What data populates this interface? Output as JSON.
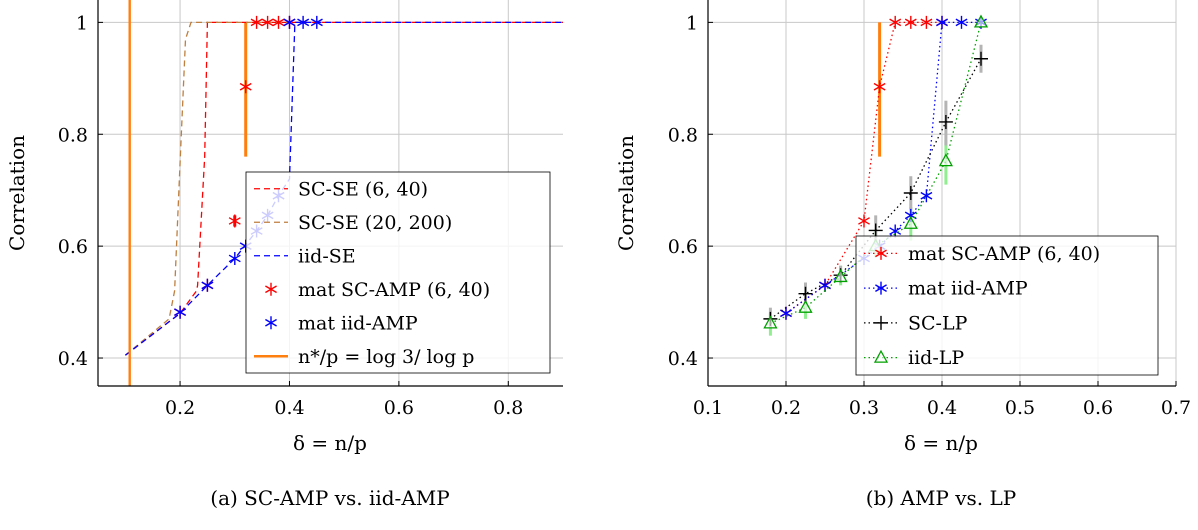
{
  "chart_data": [
    {
      "type": "line",
      "caption": "(a) SC-AMP vs. iid-AMP",
      "xlabel": "δ = n/p",
      "ylabel": "Correlation",
      "xlim": [
        0.05,
        0.9
      ],
      "ylim": [
        0.35,
        1.04
      ],
      "xticks": [
        0.2,
        0.4,
        0.6,
        0.8
      ],
      "xtick_labels": [
        "0.2",
        "0.4",
        "0.6",
        "0.8"
      ],
      "yticks": [
        0.4,
        0.6,
        0.8,
        1.0
      ],
      "ytick_labels": [
        "0.4",
        "0.6",
        "0.8",
        "1"
      ],
      "grid": true,
      "legend_position": "bottom-right",
      "series": [
        {
          "name": "SC-SE (6, 40)",
          "style": "dashed",
          "color": "#ff0000",
          "x": [
            0.1,
            0.2,
            0.23,
            0.232,
            0.245,
            0.25,
            0.9
          ],
          "y": [
            0.405,
            0.48,
            0.52,
            0.53,
            0.76,
            1.0,
            1.0
          ]
        },
        {
          "name": "SC-SE (20, 200)",
          "style": "dashed",
          "color": "#bf7f3f",
          "x": [
            0.1,
            0.18,
            0.19,
            0.2,
            0.21,
            0.22,
            0.9
          ],
          "y": [
            0.405,
            0.47,
            0.52,
            0.75,
            0.97,
            1.0,
            1.0
          ]
        },
        {
          "name": "iid-SE",
          "style": "dashed",
          "color": "#0000ff",
          "x": [
            0.1,
            0.2,
            0.25,
            0.3,
            0.34,
            0.36,
            0.38,
            0.4,
            0.41,
            0.9
          ],
          "y": [
            0.405,
            0.48,
            0.53,
            0.578,
            0.627,
            0.655,
            0.69,
            0.72,
            1.0,
            1.0
          ]
        },
        {
          "name": "mat SC-AMP (6, 40)",
          "style": "markers",
          "marker": "asterisk",
          "color": "#ff0000",
          "x": [
            0.2,
            0.25,
            0.3,
            0.32,
            0.34,
            0.36,
            0.38,
            0.4
          ],
          "y": [
            0.482,
            0.53,
            0.645,
            0.885,
            1.0,
            1.0,
            1.0,
            1.0
          ]
        },
        {
          "name": "mat iid-AMP",
          "style": "markers",
          "marker": "asterisk",
          "color": "#0000ff",
          "x": [
            0.2,
            0.25,
            0.3,
            0.32,
            0.34,
            0.36,
            0.38,
            0.4,
            0.425,
            0.45
          ],
          "y": [
            0.482,
            0.53,
            0.578,
            0.6,
            0.627,
            0.655,
            0.69,
            1.0,
            1.0,
            1.0
          ]
        },
        {
          "name": "n*/p = log 3/ log p",
          "style": "vertical-line",
          "color": "#ff7f0e",
          "x": [
            0.108,
            0.108
          ],
          "y": [
            0.35,
            1.04
          ]
        }
      ],
      "error_bars": [
        {
          "x": 0.3,
          "low": 0.635,
          "high": 0.655,
          "color": "#ff0000"
        },
        {
          "x": 0.32,
          "low": 0.76,
          "high": 1.0,
          "color": "#ff7f0e"
        }
      ]
    },
    {
      "type": "line",
      "caption": "(b) AMP vs. LP",
      "xlabel": "δ = n/p",
      "ylabel": "Correlation",
      "xlim": [
        0.1,
        0.7
      ],
      "ylim": [
        0.35,
        1.04
      ],
      "xticks": [
        0.1,
        0.2,
        0.3,
        0.4,
        0.5,
        0.6,
        0.7
      ],
      "xtick_labels": [
        "0.1",
        "0.2",
        "0.3",
        "0.4",
        "0.5",
        "0.6",
        "0.7"
      ],
      "yticks": [
        0.4,
        0.6,
        0.8,
        1.0
      ],
      "ytick_labels": [
        "0.4",
        "0.6",
        "0.8",
        "1"
      ],
      "grid": true,
      "legend_position": "right",
      "series": [
        {
          "name": "mat SC-AMP (6, 40)",
          "style": "dotted",
          "marker": "asterisk",
          "color": "#ff0000",
          "x": [
            0.2,
            0.25,
            0.3,
            0.32,
            0.34,
            0.36,
            0.38,
            0.4
          ],
          "y": [
            0.48,
            0.53,
            0.645,
            0.885,
            1.0,
            1.0,
            1.0,
            1.0
          ]
        },
        {
          "name": "mat iid-AMP",
          "style": "dotted",
          "marker": "asterisk",
          "color": "#0000ff",
          "x": [
            0.2,
            0.25,
            0.3,
            0.32,
            0.34,
            0.36,
            0.38,
            0.4,
            0.425,
            0.45
          ],
          "y": [
            0.48,
            0.53,
            0.578,
            0.6,
            0.627,
            0.655,
            0.69,
            1.0,
            1.0,
            1.0
          ]
        },
        {
          "name": "SC-LP",
          "style": "dotted",
          "marker": "plus",
          "color": "#000000",
          "x": [
            0.18,
            0.225,
            0.27,
            0.315,
            0.36,
            0.405,
            0.45
          ],
          "y": [
            0.47,
            0.515,
            0.548,
            0.628,
            0.695,
            0.822,
            0.935
          ]
        },
        {
          "name": "iid-LP",
          "style": "dotted",
          "marker": "triangle",
          "color": "#00a000",
          "x": [
            0.18,
            0.225,
            0.27,
            0.315,
            0.36,
            0.405,
            0.45
          ],
          "y": [
            0.462,
            0.49,
            0.545,
            0.6,
            0.64,
            0.752,
            1.0
          ]
        }
      ],
      "error_bars": [
        {
          "x": 0.32,
          "low": 0.76,
          "high": 1.0,
          "color": "#ff7f0e"
        },
        {
          "x": 0.18,
          "low": 0.44,
          "high": 0.48,
          "color": "#90ee90"
        },
        {
          "x": 0.225,
          "low": 0.47,
          "high": 0.51,
          "color": "#90ee90"
        },
        {
          "x": 0.27,
          "low": 0.53,
          "high": 0.565,
          "color": "#90ee90"
        },
        {
          "x": 0.315,
          "low": 0.58,
          "high": 0.63,
          "color": "#90ee90"
        },
        {
          "x": 0.36,
          "low": 0.61,
          "high": 0.67,
          "color": "#90ee90"
        },
        {
          "x": 0.405,
          "low": 0.71,
          "high": 0.79,
          "color": "#90ee90"
        },
        {
          "x": 0.18,
          "low": 0.455,
          "high": 0.49,
          "color": "#b4b4b4"
        },
        {
          "x": 0.225,
          "low": 0.495,
          "high": 0.535,
          "color": "#b4b4b4"
        },
        {
          "x": 0.27,
          "low": 0.535,
          "high": 0.565,
          "color": "#b4b4b4"
        },
        {
          "x": 0.315,
          "low": 0.6,
          "high": 0.655,
          "color": "#b4b4b4"
        },
        {
          "x": 0.36,
          "low": 0.665,
          "high": 0.725,
          "color": "#b4b4b4"
        },
        {
          "x": 0.405,
          "low": 0.78,
          "high": 0.86,
          "color": "#b4b4b4"
        },
        {
          "x": 0.45,
          "low": 0.91,
          "high": 0.96,
          "color": "#b4b4b4"
        }
      ]
    }
  ]
}
